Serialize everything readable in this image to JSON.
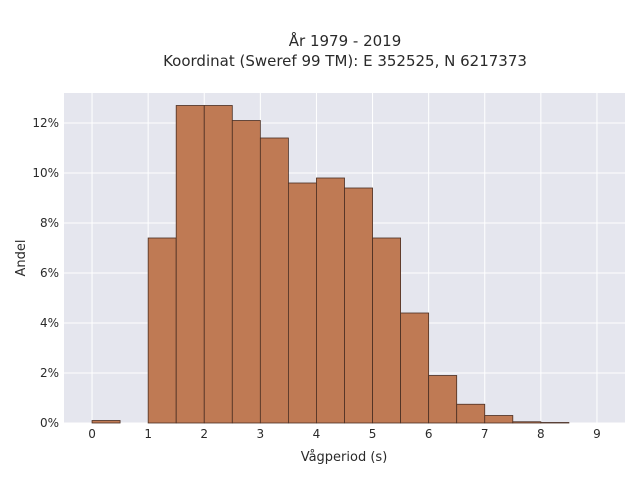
{
  "chart_data": {
    "type": "bar",
    "title_line1": "År 1979 - 2019",
    "title_line2": "Koordinat (Sweref 99 TM): E 352525, N 6217373",
    "xlabel": "Vågperiod (s)",
    "ylabel": "Andel",
    "xlim": [
      -0.5,
      9.5
    ],
    "ylim": [
      0,
      13.2
    ],
    "x_ticks": [
      0,
      1,
      2,
      3,
      4,
      5,
      6,
      7,
      8,
      9
    ],
    "y_ticks": [
      0,
      2,
      4,
      6,
      8,
      10,
      12
    ],
    "y_tick_labels": [
      "0%",
      "2%",
      "4%",
      "6%",
      "8%",
      "10%",
      "12%"
    ],
    "bin_width": 0.5,
    "bins": [
      {
        "x0": 0.0,
        "value": 0.1
      },
      {
        "x0": 0.5,
        "value": 0.0
      },
      {
        "x0": 1.0,
        "value": 7.4
      },
      {
        "x0": 1.5,
        "value": 12.7
      },
      {
        "x0": 2.0,
        "value": 12.7
      },
      {
        "x0": 2.5,
        "value": 12.1
      },
      {
        "x0": 3.0,
        "value": 11.4
      },
      {
        "x0": 3.5,
        "value": 9.6
      },
      {
        "x0": 4.0,
        "value": 9.8
      },
      {
        "x0": 4.5,
        "value": 9.4
      },
      {
        "x0": 5.0,
        "value": 7.4
      },
      {
        "x0": 5.5,
        "value": 4.4
      },
      {
        "x0": 6.0,
        "value": 1.9
      },
      {
        "x0": 6.5,
        "value": 0.75
      },
      {
        "x0": 7.0,
        "value": 0.3
      },
      {
        "x0": 7.5,
        "value": 0.05
      },
      {
        "x0": 8.0,
        "value": 0.02
      }
    ],
    "bar_color": "#bf7a54",
    "bar_edge_color": "#4a2e22",
    "plot_background": "#e5e6ee",
    "grid": true,
    "grid_color": "#ffffff"
  }
}
